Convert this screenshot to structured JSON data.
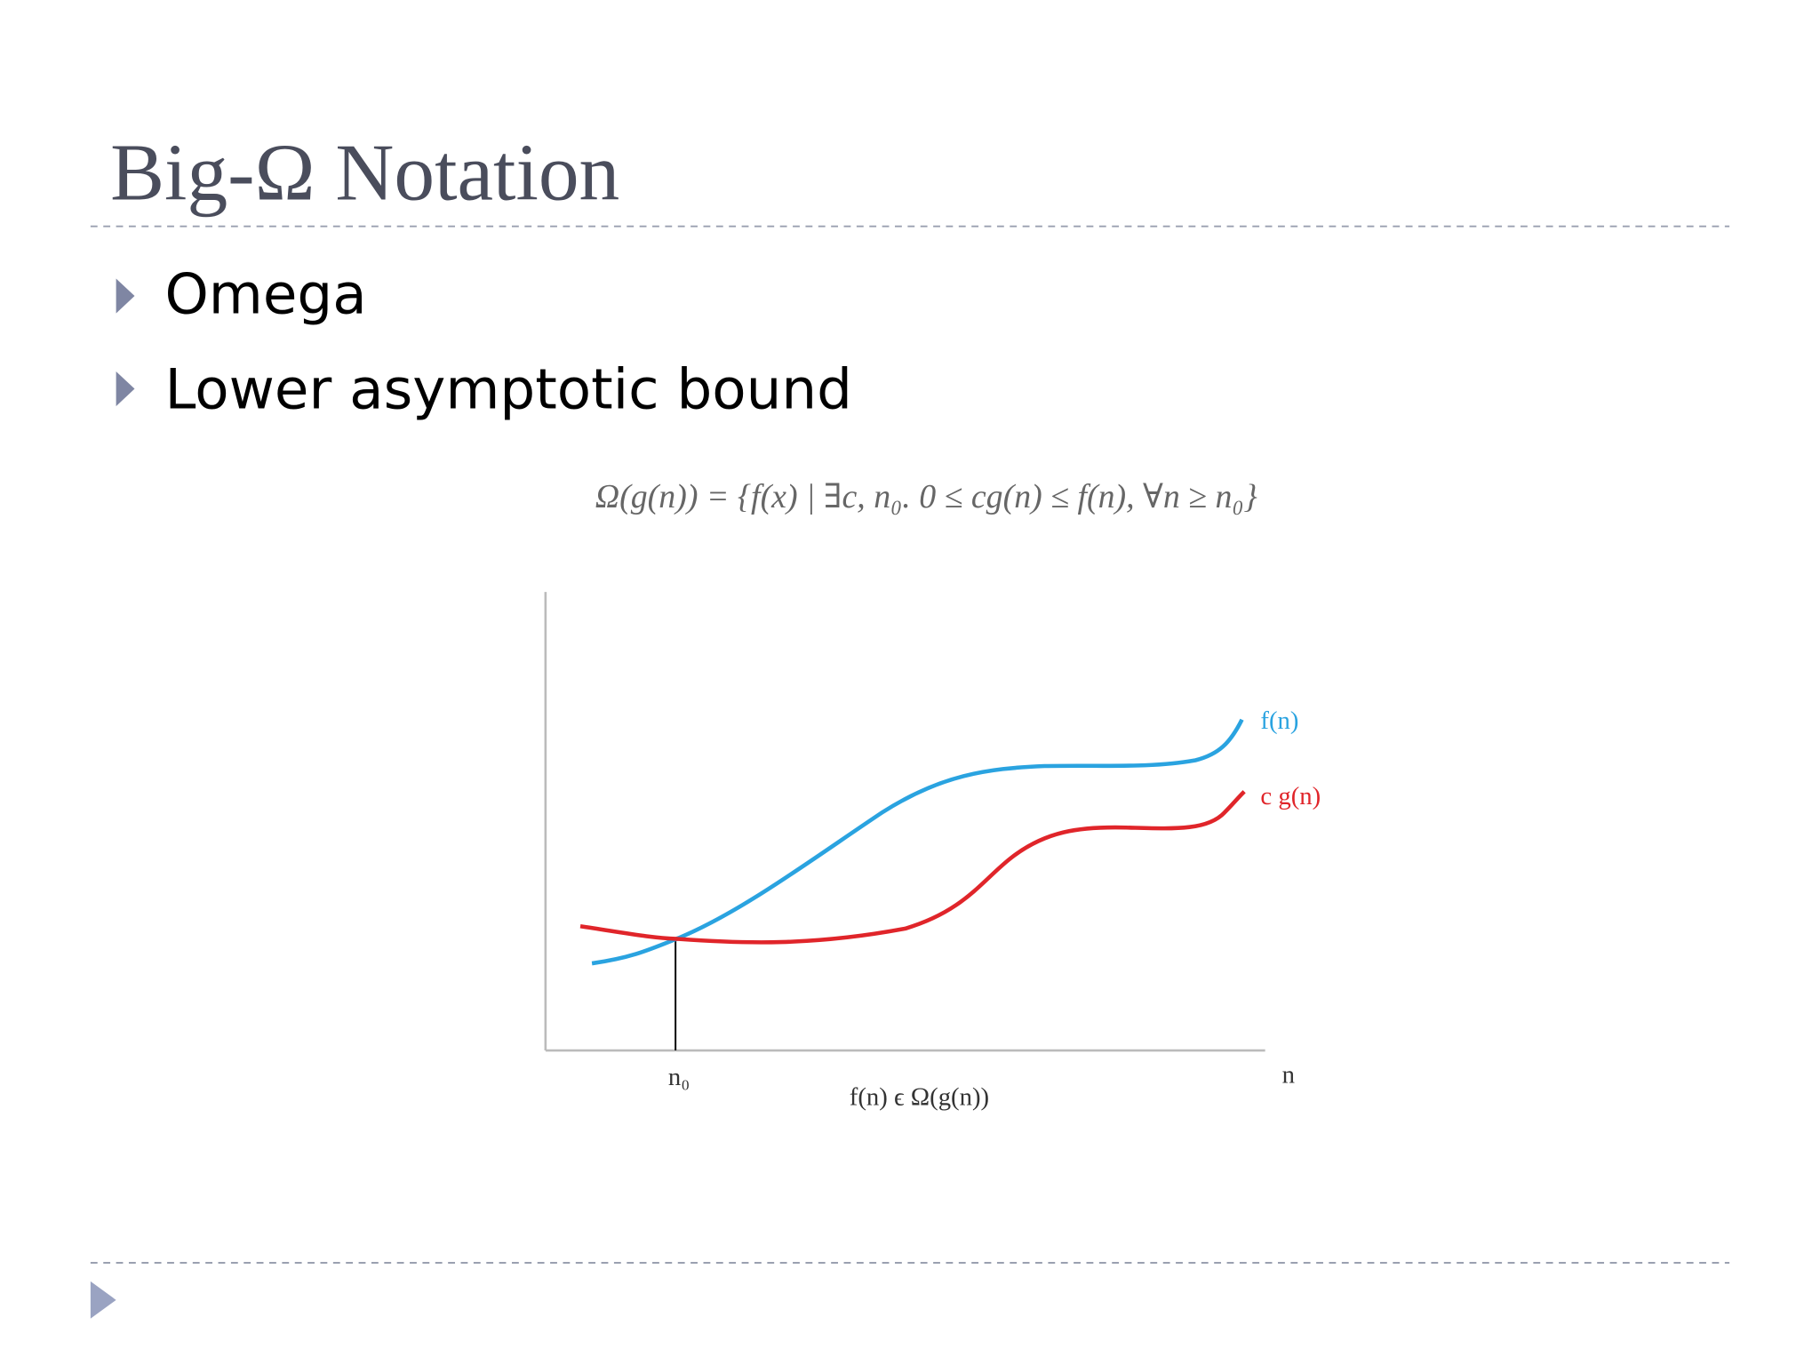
{
  "header": {
    "title": "Big-Ω Notation"
  },
  "bullets": [
    "Omega",
    "Lower asymptotic bound"
  ],
  "formula": "Ω(g(n)) = {f(x) | ∃c, n₀. 0 ≤ cg(n) ≤ f(n), ∀n ≥ n₀}",
  "diagram": {
    "curve_labels": [
      "f(n)",
      "c g(n)"
    ],
    "x_labels": [
      "n₀",
      "n"
    ],
    "caption": "f(n) ϵ Ω(g(n))"
  }
}
